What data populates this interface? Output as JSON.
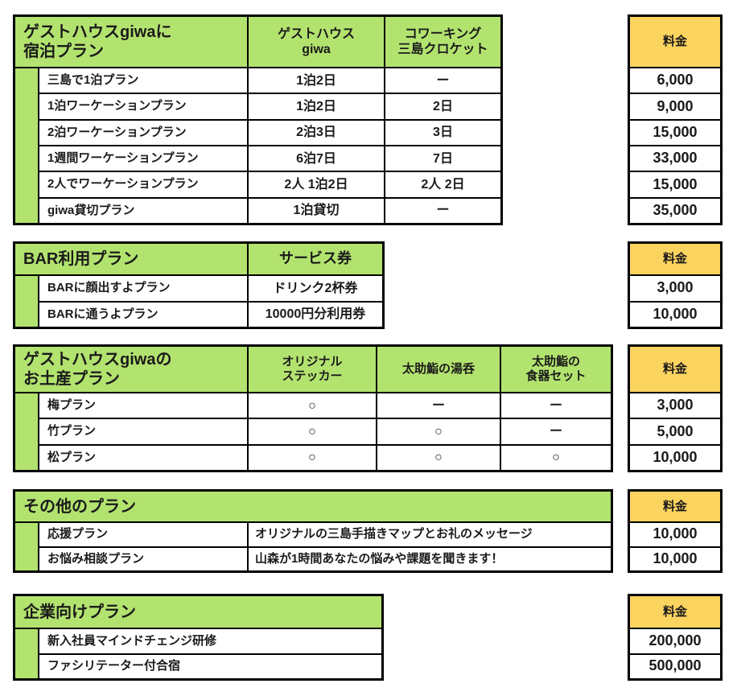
{
  "colors": {
    "header_green": "#b3e36f",
    "price_yellow": "#fbd35f",
    "border_black": "#000000",
    "cell_white": "#ffffff",
    "text_black": "#1a1a1a"
  },
  "price_column_header": "料金",
  "sections": [
    {
      "id": "lodging",
      "title_lines": [
        "ゲストハウスgiwaに",
        "宿泊プラン"
      ],
      "column_headers": [
        {
          "lines": [
            "ゲストハウス",
            "giwa"
          ]
        },
        {
          "lines": [
            "コワーキング",
            "三島クロケット"
          ]
        }
      ],
      "rows": [
        {
          "name": "三島で1泊プラン",
          "guesthouse": "1泊2日",
          "coworking": "ー",
          "price": "6,000"
        },
        {
          "name": "1泊ワーケーションプラン",
          "guesthouse": "1泊2日",
          "coworking": "2日",
          "price": "9,000"
        },
        {
          "name": "2泊ワーケーションプラン",
          "guesthouse": "2泊3日",
          "coworking": "3日",
          "price": "15,000"
        },
        {
          "name": "1週間ワーケーションプラン",
          "guesthouse": "6泊7日",
          "coworking": "7日",
          "price": "33,000"
        },
        {
          "name": "2人でワーケーションプラン",
          "guesthouse": "2人 1泊2日",
          "coworking": "2人 2日",
          "price": "15,000"
        },
        {
          "name": "giwa貸切プラン",
          "guesthouse": "1泊貸切",
          "coworking": "ー",
          "price": "35,000"
        }
      ]
    },
    {
      "id": "bar",
      "title_lines": [
        "BAR利用プラン"
      ],
      "column_headers": [
        {
          "lines": [
            "サービス券"
          ]
        }
      ],
      "rows": [
        {
          "name": "BARに顔出すよプラン",
          "service": "ドリンク2杯券",
          "price": "3,000"
        },
        {
          "name": "BARに通うよプラン",
          "service": "10000円分利用券",
          "price": "10,000"
        }
      ]
    },
    {
      "id": "souvenir",
      "title_lines": [
        "ゲストハウスgiwaの",
        "お土産プラン"
      ],
      "column_headers": [
        {
          "lines": [
            "オリジナル",
            "ステッカー"
          ]
        },
        {
          "lines": [
            "太助鮨の湯呑"
          ]
        },
        {
          "lines": [
            "太助鮨の",
            "食器セット"
          ]
        }
      ],
      "rows": [
        {
          "name": "梅プラン",
          "sticker": "○",
          "yunomi": "ー",
          "tableware": "ー",
          "price": "3,000"
        },
        {
          "name": "竹プラン",
          "sticker": "○",
          "yunomi": "○",
          "tableware": "ー",
          "price": "5,000"
        },
        {
          "name": "松プラン",
          "sticker": "○",
          "yunomi": "○",
          "tableware": "○",
          "price": "10,000"
        }
      ]
    },
    {
      "id": "other",
      "title_lines": [
        "その他のプラン"
      ],
      "rows": [
        {
          "name": "応援プラン",
          "description": "オリジナルの三島手描きマップとお礼のメッセージ",
          "price": "10,000"
        },
        {
          "name": "お悩み相談プラン",
          "description": "山森が1時間あなたの悩みや課題を聞きます！",
          "price": "10,000"
        }
      ]
    },
    {
      "id": "corporate",
      "title_lines": [
        "企業向けプラン"
      ],
      "rows": [
        {
          "name": "新入社員マインドチェンジ研修",
          "price": "200,000"
        },
        {
          "name": "ファシリテーター付合宿",
          "price": "500,000"
        }
      ]
    }
  ]
}
